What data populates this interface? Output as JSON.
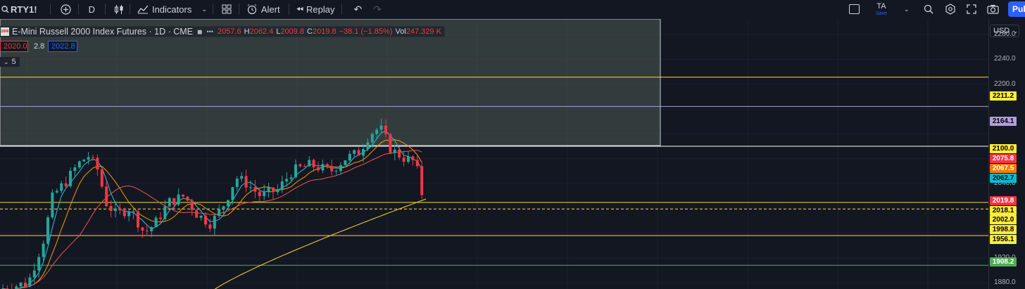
{
  "toolbar": {
    "symbol": "RTY1!",
    "interval": "D",
    "indicators_label": "Indicators",
    "alert_label": "Alert",
    "replay_label": "Replay",
    "account_initials": "TA",
    "account_sub": "Save",
    "publish_label": "Pub"
  },
  "legend": {
    "instrument": "E-Mini Russell 2000 Index Futures · 1D · CME",
    "logo_text": "2000",
    "more_icon": "•••",
    "open_label": "",
    "open": "2057.6",
    "high_label": "H",
    "high": "2062.4",
    "low_label": "L",
    "low": "2009.8",
    "close_label": "C",
    "close": "2019.8",
    "change": "−38.1 (−1.85%)",
    "vol_label": "Vol",
    "vol": "247.329 K",
    "sell_price": "2020.0",
    "spread": "2.8",
    "buy_price": "2022.8",
    "collapse_label": "5"
  },
  "axis": {
    "currency": "USD",
    "ticks": [
      "2280.0",
      "2240.0",
      "2200.0",
      "2040.0",
      "1920.0",
      "1880.0"
    ],
    "badges": [
      {
        "label": "2211.2",
        "bg": "#ffeb3b",
        "fg": "#000000"
      },
      {
        "label": "2164.1",
        "bg": "#b39ddb",
        "fg": "#000000"
      },
      {
        "label": "2100.0",
        "bg": "#ffeb3b",
        "fg": "#000000"
      },
      {
        "label": "2075.8",
        "bg": "#f23645",
        "fg": "#ffffff"
      },
      {
        "label": "2067.5",
        "bg": "#f57c00",
        "fg": "#ffffff"
      },
      {
        "label": "2062.7",
        "bg": "#00bcd4",
        "fg": "#000000"
      },
      {
        "label": "2019.8",
        "bg": "#f23645",
        "fg": "#ffffff"
      },
      {
        "label": "2018.1",
        "bg": "#ffeb3b",
        "fg": "#000000"
      },
      {
        "label": "2002.0",
        "bg": "#ffeb3b",
        "fg": "#000000"
      },
      {
        "label": "1998.8",
        "bg": "#ffeb3b",
        "fg": "#000000"
      },
      {
        "label": "1956.1",
        "bg": "#ffeb3b",
        "fg": "#000000"
      },
      {
        "label": "1908.2",
        "bg": "#4caf50",
        "fg": "#ffffff"
      }
    ]
  },
  "colors": {
    "up": "#26a69a",
    "down": "#f23645",
    "level_yellow": "#fdd835",
    "level_green": "#4caf50",
    "level_lavender": "#b39ddb",
    "zone_fill": "#3f4a47",
    "ma_fast": "#26c6da",
    "ma_mid": "#ff9800",
    "ma_slow": "#ef5350",
    "ma_long": "#fdd835"
  },
  "chart_data": {
    "type": "candlestick",
    "y_axis": {
      "ticks": [
        2280,
        2240,
        2200,
        2040,
        1920,
        1880
      ],
      "range": [
        1870,
        2305
      ]
    },
    "levels": [
      2211.2,
      2164.1,
      2100.0,
      2018.1,
      2009.5,
      1956.1,
      1908.2
    ],
    "zone": {
      "from": 2100,
      "to": 2305
    }
  }
}
